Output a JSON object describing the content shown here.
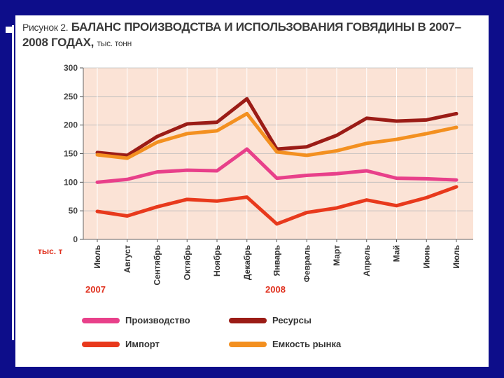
{
  "slide": {
    "background": "#0d0d8a"
  },
  "figure": {
    "title_lead": "Рисунок 2.",
    "title_main": "БАЛАНС ПРОИЗВОДСТВА И ИСПОЛЬЗОВАНИЯ ГОВЯДИНЫ В 2007–2008 ГОДАХ,",
    "title_unit": "тыс. тонн",
    "y_unit": "тыс. т",
    "year_labels": [
      "2007",
      "2008"
    ]
  },
  "chart_data": {
    "type": "line",
    "title": "Рисунок 2. БАЛАНС ПРОИЗВОДСТВА И ИСПОЛЬЗОВАНИЯ ГОВЯДИНЫ В 2007–2008 ГОДАХ, тыс. тонн",
    "ylabel": "тыс. т",
    "ylim": [
      0,
      300
    ],
    "yticks": [
      0,
      50,
      100,
      150,
      200,
      250,
      300
    ],
    "grid": true,
    "legend_position": "bottom",
    "categories": [
      "Июль",
      "Август",
      "Сентябрь",
      "Октябрь",
      "Ноябрь",
      "Декабрь",
      "Январь",
      "Февраль",
      "Март",
      "Апрель",
      "Май",
      "Июнь",
      "Июль"
    ],
    "series": [
      {
        "name": "Ресурсы",
        "color": "#9b1c16",
        "values": [
          152,
          147,
          180,
          202,
          205,
          246,
          158,
          162,
          182,
          212,
          207,
          209,
          220
        ]
      },
      {
        "name": "Емкость рынка",
        "color": "#f39020",
        "values": [
          148,
          142,
          170,
          185,
          190,
          220,
          153,
          147,
          155,
          168,
          175,
          185,
          196
        ]
      },
      {
        "name": "Производство",
        "color": "#e8408a",
        "values": [
          100,
          105,
          118,
          121,
          120,
          158,
          107,
          112,
          115,
          120,
          107,
          106,
          104
        ]
      },
      {
        "name": "Импорт",
        "color": "#e8391c",
        "values": [
          49,
          41,
          57,
          70,
          67,
          74,
          27,
          47,
          55,
          69,
          59,
          73,
          92
        ]
      }
    ]
  },
  "legend": {
    "items": [
      {
        "name": "Производство",
        "color": "#e8408a"
      },
      {
        "name": "Ресурсы",
        "color": "#9b1c16"
      },
      {
        "name": "Импорт",
        "color": "#e8391c"
      },
      {
        "name": "Емкость рынка",
        "color": "#f39020"
      }
    ]
  }
}
